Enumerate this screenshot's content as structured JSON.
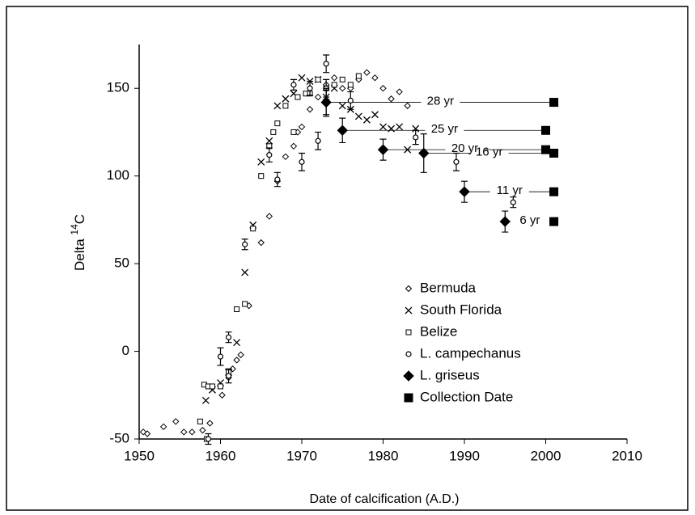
{
  "chart_data": {
    "type": "scatter",
    "x_label": "Date of calcification (A.D.)",
    "y_label": "Delta",
    "y_label_sup": "14",
    "y_label_suffix": "C",
    "xlim": [
      1950,
      2010
    ],
    "xticks": [
      1950,
      1960,
      1970,
      1980,
      1990,
      2000,
      2010
    ],
    "ylim": [
      -50,
      175
    ],
    "yticks": [
      -50,
      0,
      50,
      100,
      150
    ],
    "legend": "lower right",
    "series": [
      {
        "name": "Bermuda",
        "marker": "diamond",
        "color": "#000000",
        "x": [
          1950.5,
          1951,
          1953,
          1954.5,
          1955.5,
          1956.5,
          1957.8,
          1958.7,
          1960.2,
          1961,
          1961.5,
          1962,
          1962.5,
          1963.5,
          1965,
          1966,
          1967,
          1968,
          1969,
          1969.5,
          1970,
          1971,
          1972,
          1973,
          1974,
          1975,
          1976,
          1977,
          1978,
          1979,
          1980,
          1981,
          1982,
          1983
        ],
        "values": [
          -46,
          -47,
          -43,
          -40,
          -46,
          -46,
          -45,
          -41,
          -25,
          -15,
          -10,
          -5,
          -2,
          26,
          62,
          77,
          97,
          111,
          117,
          125,
          128,
          138,
          145,
          152,
          156,
          150,
          150,
          155,
          159,
          156,
          150,
          144,
          148,
          140
        ]
      },
      {
        "name": "South Florida",
        "marker": "x",
        "color": "#000000",
        "x": [
          1958.2,
          1959,
          1960,
          1961,
          1962,
          1963,
          1964,
          1965,
          1966,
          1967,
          1968,
          1969,
          1970,
          1971,
          1972,
          1973,
          1974,
          1975,
          1976,
          1977,
          1978,
          1979,
          1980,
          1981,
          1982,
          1983,
          1984
        ],
        "values": [
          -28,
          -22,
          -18,
          -12,
          5,
          45,
          72,
          108,
          120,
          140,
          144,
          147,
          156,
          154,
          155,
          145,
          150,
          140,
          138,
          134,
          132,
          135,
          128,
          127,
          128,
          115,
          127
        ]
      },
      {
        "name": "Belize",
        "marker": "square",
        "color": "#000000",
        "x": [
          1957.5,
          1958,
          1958.3,
          1958.5,
          1959,
          1960,
          1961,
          1962,
          1963,
          1964,
          1965,
          1966,
          1966.5,
          1967,
          1968,
          1969,
          1969.5,
          1970.5,
          1971,
          1972,
          1973,
          1974,
          1975,
          1976,
          1977
        ],
        "values": [
          -40,
          -19,
          -50,
          -20,
          -20,
          -20,
          -12,
          24,
          27,
          70,
          100,
          117,
          125,
          130,
          140,
          125,
          145,
          147,
          147,
          155,
          150,
          152,
          155,
          152,
          157
        ]
      },
      {
        "name": "L. campechanus",
        "marker": "circle",
        "color": "#000000",
        "x": [
          1958.5,
          1960,
          1961,
          1961,
          1963,
          1966,
          1967,
          1969,
          1970,
          1971,
          1972,
          1973,
          1973,
          1973,
          1976,
          1984,
          1989,
          1996
        ],
        "values": [
          -50,
          -3,
          8,
          -14,
          61,
          112,
          98,
          152,
          108,
          150,
          120,
          164,
          150,
          142,
          143,
          122,
          108,
          85
        ],
        "errors": [
          3,
          5,
          3,
          4,
          3,
          4,
          4,
          3,
          5,
          4,
          5,
          5,
          5,
          7,
          5,
          4,
          5,
          3
        ]
      },
      {
        "name": "L. griseus",
        "marker": "filled-diamond",
        "color": "#000000",
        "x": [
          1973,
          1975,
          1980,
          1985,
          1990,
          1995
        ],
        "values": [
          142,
          126,
          115,
          113,
          91,
          74
        ],
        "errors": [
          8,
          7,
          6,
          11,
          6,
          6
        ]
      },
      {
        "name": "Collection Date",
        "marker": "filled-square",
        "color": "#000000",
        "x": [
          2001,
          2000,
          2000,
          2001,
          2001,
          2001
        ],
        "values": [
          142,
          126,
          115,
          113,
          91,
          74
        ]
      }
    ],
    "annotations": [
      "28 yr",
      "25 yr",
      "20 yr",
      "16 yr",
      "11 yr",
      "6 yr"
    ]
  }
}
